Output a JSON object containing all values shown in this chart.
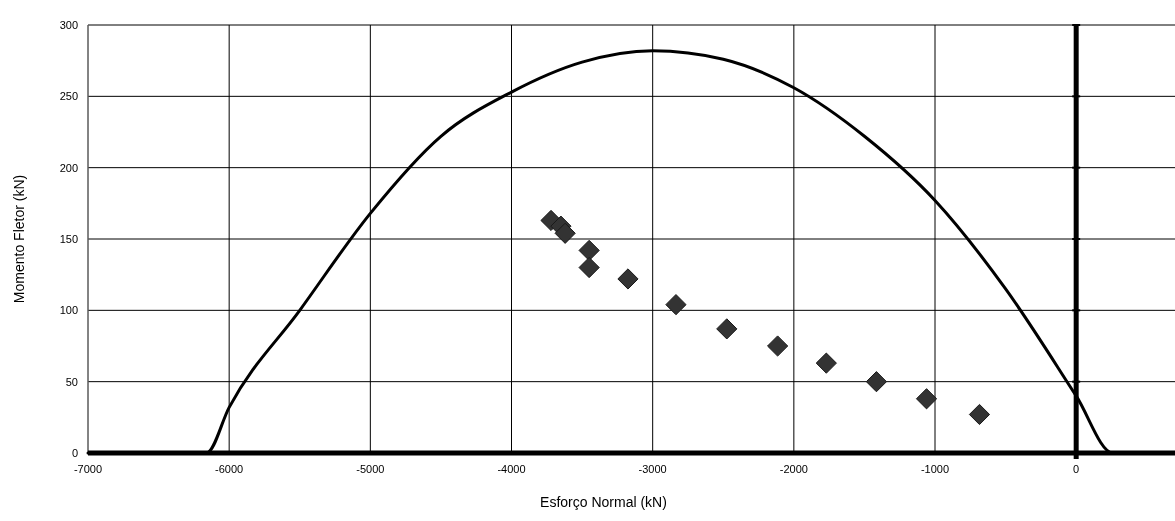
{
  "chart_data": {
    "type": "scatter",
    "xlabel": "Esforço Normal (kN)",
    "ylabel": "Momento Fletor (kN)",
    "xlim": [
      -7000,
      700
    ],
    "ylim": [
      0,
      300
    ],
    "xticks": [
      -7000,
      -6000,
      -5000,
      -4000,
      -3000,
      -2000,
      -1000,
      0
    ],
    "yticks": [
      0,
      50,
      100,
      150,
      200,
      250,
      300
    ],
    "grid": true,
    "series": [
      {
        "type": "line",
        "color": "#000000",
        "marker": "none",
        "line_style": "solid",
        "x": [
          -7000,
          -6160,
          -6000,
          -5500,
          -5000,
          -4500,
          -4000,
          -3500,
          -3000,
          -2500,
          -2000,
          -1500,
          -1000,
          -500,
          0,
          260,
          700
        ],
        "values": [
          0,
          0,
          32,
          100,
          168,
          222,
          253,
          274,
          282,
          276,
          256,
          222,
          177,
          115,
          40,
          0,
          0
        ]
      },
      {
        "color": "#333333",
        "marker": "diamond",
        "x": [
          -3720,
          -3650,
          -3620,
          -3450,
          -3450,
          -3175,
          -2835,
          -2475,
          -2115,
          -1770,
          -1415,
          -1060,
          -685
        ],
        "values": [
          163,
          159,
          154,
          142,
          130,
          122,
          104,
          87,
          75,
          63,
          50,
          38,
          27
        ]
      }
    ]
  }
}
